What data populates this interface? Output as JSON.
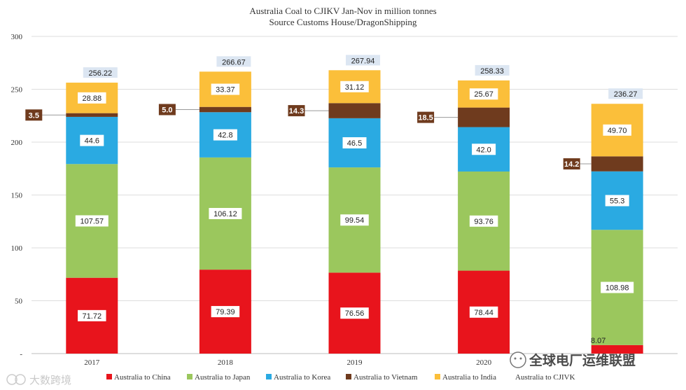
{
  "chart_data": {
    "type": "bar",
    "stacked": true,
    "title": "Australia Coal to CJIKV Jan-Nov in million tonnes",
    "subtitle": "Source Customs House/DragonShipping",
    "categories": [
      "2017",
      "2018",
      "2019",
      "2020",
      ""
    ],
    "ylim": [
      0,
      300
    ],
    "yticks": [
      0,
      50,
      100,
      150,
      200,
      250,
      300
    ],
    "ytick_labels": [
      "-",
      "50",
      "100",
      "150",
      "200",
      "250",
      "300"
    ],
    "grid": true,
    "series": [
      {
        "name": "Australia to China",
        "color": "#e8141c",
        "values": [
          71.72,
          79.39,
          76.56,
          78.44,
          8.07
        ],
        "labels": [
          "71.72",
          "79.39",
          "76.56",
          "78.44",
          "8.07"
        ]
      },
      {
        "name": "Australia to Japan",
        "color": "#9bc75d",
        "values": [
          107.57,
          106.12,
          99.54,
          93.76,
          108.98
        ],
        "labels": [
          "107.57",
          "106.12",
          "99.54",
          "93.76",
          "108.98"
        ]
      },
      {
        "name": "Australia to Korea",
        "color": "#2aaae2",
        "values": [
          44.6,
          42.8,
          46.5,
          42.0,
          55.3
        ],
        "labels": [
          "44.6",
          "42.8",
          "46.5",
          "42.0",
          "55.3"
        ]
      },
      {
        "name": "Australia to Vietnam",
        "color": "#6f3b1e",
        "values": [
          3.5,
          5.0,
          14.3,
          18.5,
          14.2
        ],
        "labels": [
          "3.5",
          "5.0",
          "14.3",
          "18.5",
          "14.2"
        ]
      },
      {
        "name": "Australia to India",
        "color": "#fbbf3a",
        "values": [
          28.88,
          33.37,
          31.12,
          25.67,
          49.7
        ],
        "labels": [
          "28.88",
          "33.37",
          "31.12",
          "25.67",
          "49.70"
        ]
      }
    ],
    "totals": {
      "name": "Australia to CJIVK",
      "values": [
        256.22,
        266.67,
        267.94,
        258.33,
        236.27
      ],
      "labels": [
        "256.22",
        "266.67",
        "267.94",
        "258.33",
        "236.27"
      ]
    },
    "legend_position": "bottom"
  },
  "watermarks": {
    "left": "大数跨境",
    "right": "全球电厂运维联盟"
  }
}
